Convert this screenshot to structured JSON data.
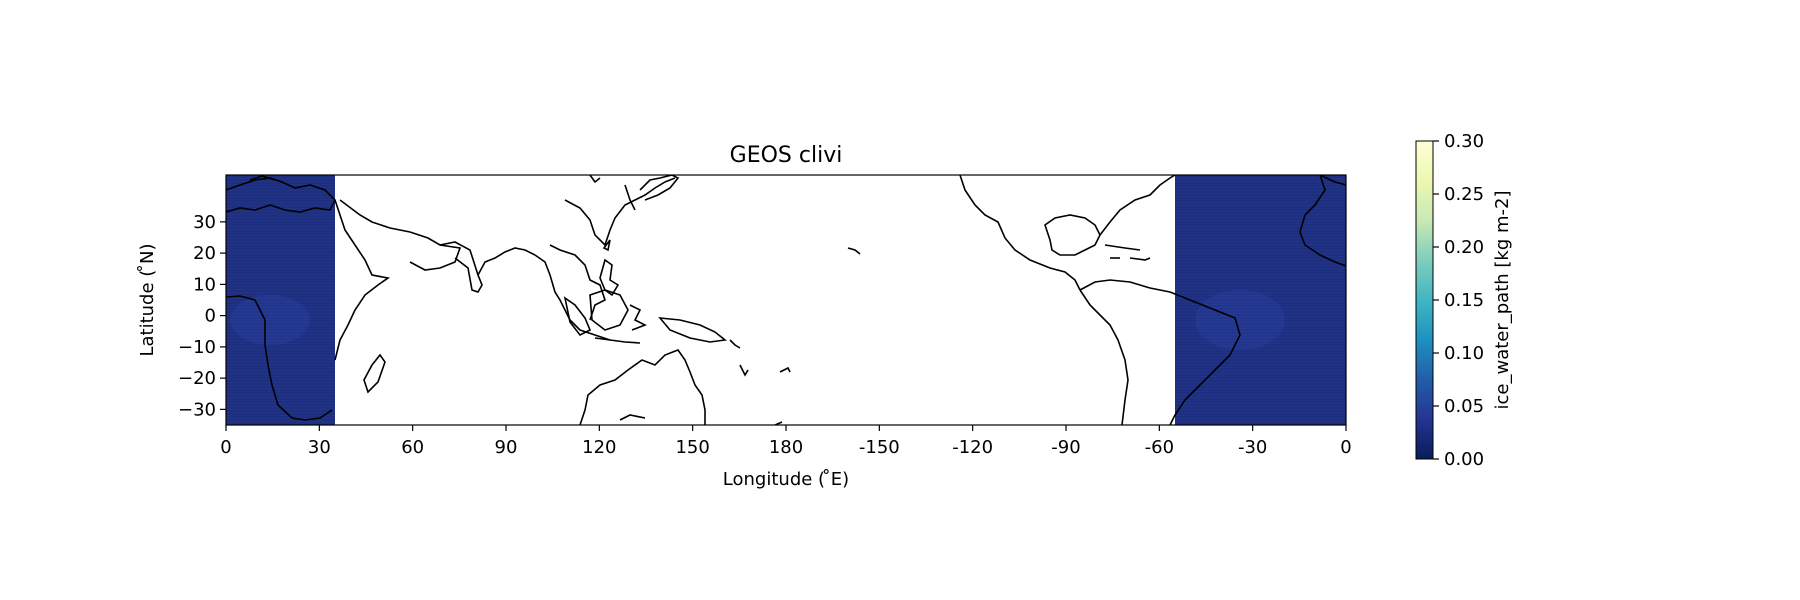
{
  "figure": {
    "title": "GEOS clivi",
    "xlabel": "Longitude ( ̊E)",
    "ylabel": "Latitude ( ̊N)"
  },
  "map": {
    "x_tick_labels": [
      "0",
      "30",
      "60",
      "90",
      "120",
      "150",
      "180",
      "-150",
      "-120",
      "-90",
      "-60",
      "-30",
      "0"
    ],
    "y_tick_labels": [
      "30",
      "20",
      "10",
      "0",
      "−10",
      "−20",
      "−30"
    ],
    "y_tick_values": [
      30,
      20,
      10,
      0,
      -10,
      -20,
      -30
    ],
    "lon_range": [
      0,
      360
    ],
    "lat_range": [
      -35,
      45
    ],
    "data_regions": [
      {
        "name": "africa-atlantic-east",
        "lon_range": [
          0,
          35
        ]
      },
      {
        "name": "atlantic-west",
        "lon_range": [
          305,
          360
        ]
      }
    ],
    "data_fill_color": "#1e2f80",
    "coastline_color": "#000000"
  },
  "colorbar": {
    "label": "ice_water_path [kg m-2]",
    "tick_labels": [
      "0.30",
      "0.25",
      "0.20",
      "0.15",
      "0.10",
      "0.05",
      "0.00"
    ],
    "vmin": 0.0,
    "vmax": 0.3,
    "colormap": "YlGnBu",
    "colors": [
      "#081d58",
      "#253494",
      "#225ea8",
      "#1d91c0",
      "#41b6c4",
      "#7fcdbb",
      "#c7e9b4",
      "#edf8b1",
      "#ffffd9"
    ]
  }
}
